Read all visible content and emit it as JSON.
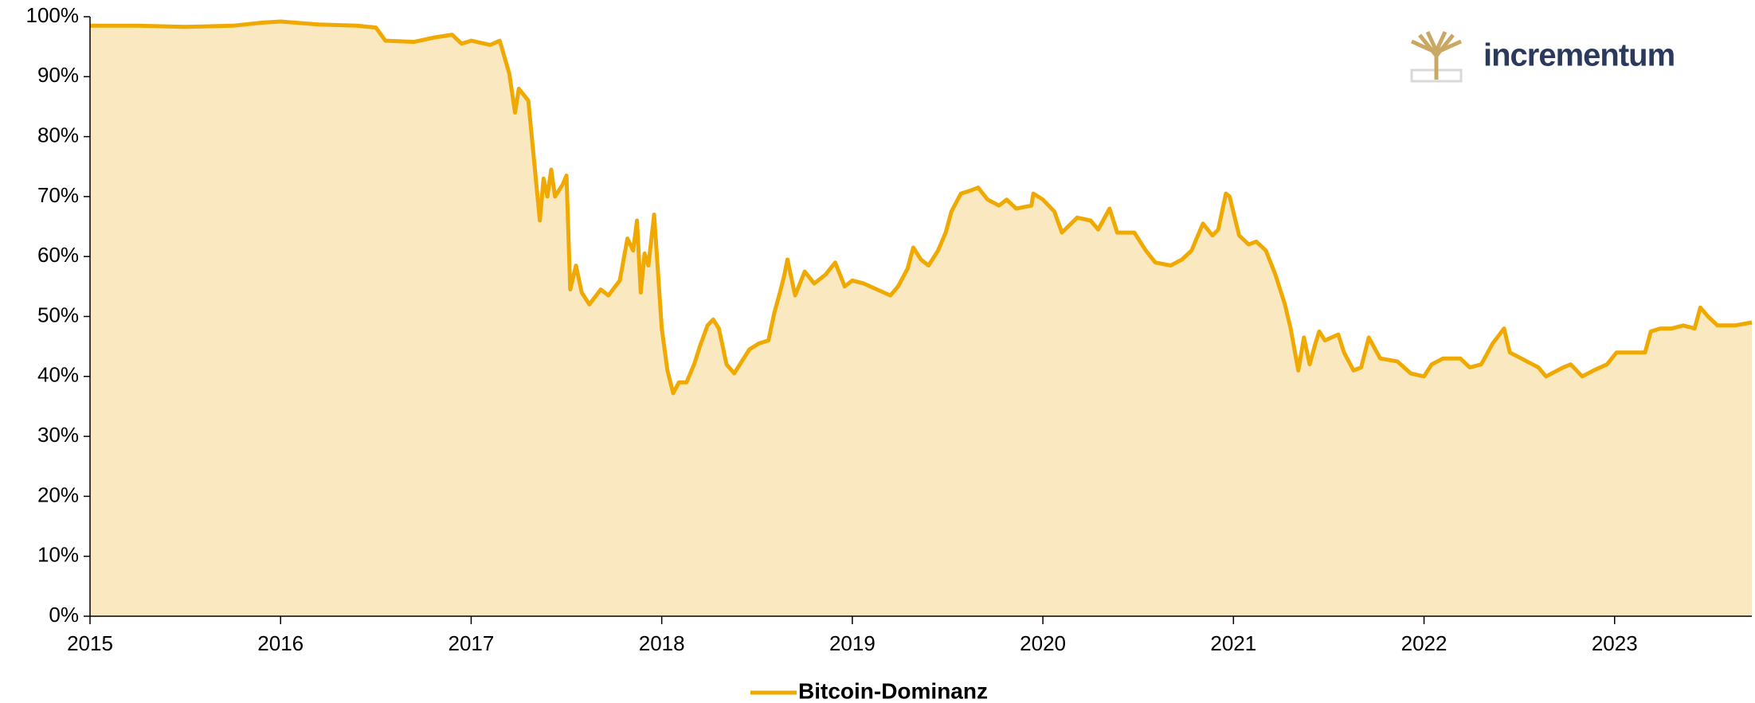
{
  "chart_data": {
    "type": "area",
    "x": [
      2015.0,
      2015.25,
      2015.5,
      2015.75,
      2015.9,
      2016.0,
      2016.2,
      2016.4,
      2016.5,
      2016.55,
      2016.7,
      2016.8,
      2016.9,
      2016.95,
      2017.0,
      2017.1,
      2017.15,
      2017.2,
      2017.23,
      2017.25,
      2017.3,
      2017.33,
      2017.36,
      2017.38,
      2017.4,
      2017.42,
      2017.44,
      2017.48,
      2017.5,
      2017.52,
      2017.55,
      2017.58,
      2017.62,
      2017.68,
      2017.72,
      2017.78,
      2017.82,
      2017.85,
      2017.87,
      2017.89,
      2017.91,
      2017.93,
      2017.96,
      2018.0,
      2018.03,
      2018.06,
      2018.09,
      2018.13,
      2018.17,
      2018.2,
      2018.24,
      2018.27,
      2018.3,
      2018.34,
      2018.38,
      2018.42,
      2018.46,
      2018.51,
      2018.56,
      2018.59,
      2018.62,
      2018.64,
      2018.66,
      2018.7,
      2018.75,
      2018.8,
      2018.86,
      2018.91,
      2018.96,
      2019.0,
      2019.06,
      2019.13,
      2019.2,
      2019.24,
      2019.29,
      2019.32,
      2019.36,
      2019.4,
      2019.45,
      2019.49,
      2019.52,
      2019.57,
      2019.62,
      2019.66,
      2019.71,
      2019.77,
      2019.81,
      2019.86,
      2019.94,
      2019.95,
      2020.0,
      2020.06,
      2020.1,
      2020.18,
      2020.25,
      2020.29,
      2020.35,
      2020.39,
      2020.48,
      2020.54,
      2020.59,
      2020.67,
      2020.73,
      2020.78,
      2020.84,
      2020.89,
      2020.92,
      2020.96,
      2020.98,
      2021.03,
      2021.08,
      2021.12,
      2021.17,
      2021.22,
      2021.27,
      2021.3,
      2021.34,
      2021.37,
      2021.4,
      2021.43,
      2021.45,
      2021.48,
      2021.55,
      2021.58,
      2021.63,
      2021.67,
      2021.71,
      2021.77,
      2021.86,
      2021.93,
      2022.0,
      2022.04,
      2022.1,
      2022.19,
      2022.24,
      2022.3,
      2022.36,
      2022.42,
      2022.45,
      2022.51,
      2022.6,
      2022.64,
      2022.73,
      2022.77,
      2022.83,
      2022.89,
      2022.96,
      2023.01,
      2023.07,
      2023.16,
      2023.19,
      2023.24,
      2023.3,
      2023.36,
      2023.42,
      2023.45,
      2023.49,
      2023.54,
      2023.63,
      2023.72
    ],
    "series": [
      {
        "name": "Bitcoin-Dominanz",
        "color": "#f0a900",
        "fill": "#fae8c0",
        "values": [
          98.5,
          98.5,
          98.3,
          98.5,
          99,
          99.2,
          98.7,
          98.5,
          98.2,
          96,
          95.8,
          96.5,
          97,
          95.5,
          96,
          95.3,
          96,
          90.5,
          84,
          88,
          86,
          76,
          66,
          73,
          70,
          74.5,
          70,
          72,
          73.5,
          54.5,
          58.5,
          54,
          52,
          54.5,
          53.5,
          56,
          63,
          61,
          66,
          54,
          60.5,
          58.5,
          67,
          48,
          41,
          37.2,
          39,
          39,
          42,
          45,
          48.5,
          49.5,
          48,
          42,
          40.5,
          42.5,
          44.5,
          45.5,
          46,
          50.5,
          54,
          56.5,
          59.5,
          53.5,
          57.5,
          55.5,
          57,
          59,
          55,
          56,
          55.5,
          54.5,
          53.5,
          55,
          58,
          61.5,
          59.5,
          58.5,
          61,
          64,
          67.5,
          70.5,
          71,
          71.5,
          69.5,
          68.5,
          69.5,
          68,
          68.5,
          70.5,
          69.5,
          67.5,
          64,
          66.5,
          66,
          64.5,
          68,
          64,
          64,
          61,
          59,
          58.5,
          59.5,
          61,
          65.5,
          63.5,
          64.5,
          70.5,
          70,
          63.5,
          62,
          62.5,
          61,
          57,
          52,
          48,
          41,
          46.5,
          42,
          45.5,
          47.5,
          46,
          47,
          44,
          41,
          41.5,
          46.5,
          43,
          42.5,
          40.5,
          40,
          42,
          43,
          43,
          41.5,
          42,
          45.5,
          48,
          44,
          43,
          41.5,
          40,
          41.5,
          42,
          40,
          41,
          42,
          44,
          44,
          44,
          47.5,
          48,
          48,
          48.5,
          48,
          51.5,
          50,
          48.5,
          48.5,
          49
        ]
      }
    ],
    "xlim": [
      2015,
      2023.72
    ],
    "xticks": [
      2015,
      2016,
      2017,
      2018,
      2019,
      2020,
      2021,
      2022,
      2023
    ],
    "ylim": [
      0,
      100
    ],
    "yticks": [
      {
        "value": 0,
        "label": "0%"
      },
      {
        "value": 10,
        "label": "10%"
      },
      {
        "value": 20,
        "label": "20%"
      },
      {
        "value": 30,
        "label": "30%"
      },
      {
        "value": 40,
        "label": "40%"
      },
      {
        "value": 50,
        "label": "50%"
      },
      {
        "value": 60,
        "label": "60%"
      },
      {
        "value": 70,
        "label": "70%"
      },
      {
        "value": 80,
        "label": "80%"
      },
      {
        "value": 90,
        "label": "90%"
      },
      {
        "value": 100,
        "label": "100%"
      }
    ],
    "legend": "bottom",
    "brand": "incrementum"
  }
}
